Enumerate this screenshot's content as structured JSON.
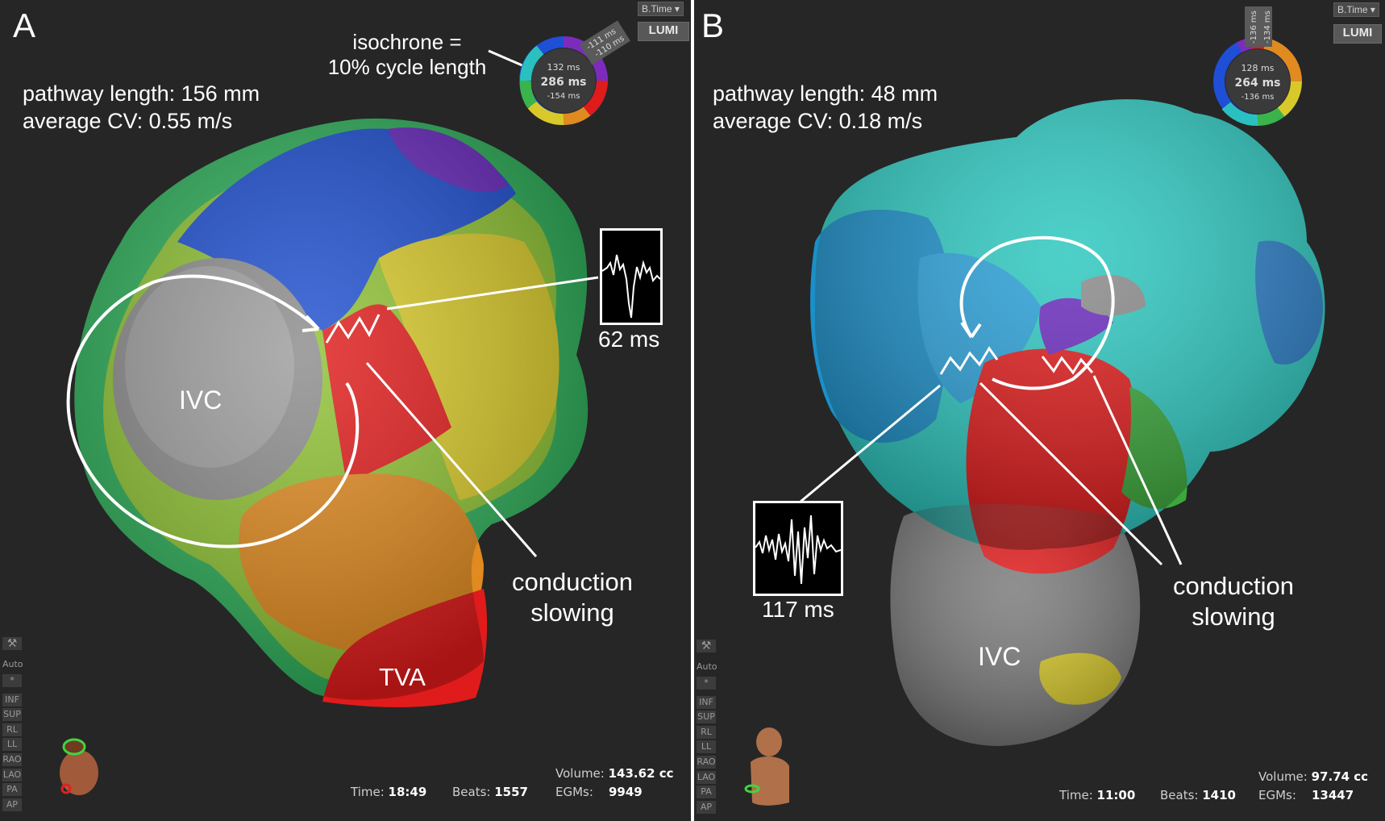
{
  "panel_a": {
    "letter": "A",
    "isochrone_label_1": "isochrone =",
    "isochrone_label_2": "10% cycle length",
    "pathway_length": "pathway length: 156 mm",
    "average_cv": "average CV: 0.55 m/s",
    "ivc_label": "IVC",
    "tva_label": "TVA",
    "conduction_1": "conduction",
    "conduction_2": "slowing",
    "egm_time": "62 ms",
    "btime_button": "B.Time",
    "lumi_button": "LUMI",
    "ring": {
      "top": "132 ms",
      "center": "286 ms",
      "bottom": "-154 ms",
      "tag1": "-111 ms",
      "tag2": "-110 ms"
    },
    "side_buttons": [
      "Auto",
      "*",
      "INF",
      "SUP",
      "RL",
      "LL",
      "RAO",
      "LAO",
      "PA",
      "AP"
    ],
    "footer": {
      "volume_label": "Volume:",
      "volume_value": "143.62 cc",
      "time_label": "Time:",
      "time_value": "18:49",
      "beats_label": "Beats:",
      "beats_value": "1557",
      "egms_label": "EGMs:",
      "egms_value": "9949"
    }
  },
  "panel_b": {
    "letter": "B",
    "pathway_length": "pathway length: 48 mm",
    "average_cv": "average CV: 0.18 m/s",
    "ivc_label": "IVC",
    "conduction_1": "conduction",
    "conduction_2": "slowing",
    "egm_time": "117 ms",
    "btime_button": "B.Time",
    "lumi_button": "LUMI",
    "ring": {
      "top": "128 ms",
      "center": "264 ms",
      "bottom": "-136 ms",
      "tag1": "-136 ms",
      "tag2": "-134 ms"
    },
    "side_buttons": [
      "Auto",
      "*",
      "INF",
      "SUP",
      "RL",
      "LL",
      "RAO",
      "LAO",
      "PA",
      "AP"
    ],
    "footer": {
      "volume_label": "Volume:",
      "volume_value": "97.74 cc",
      "time_label": "Time:",
      "time_value": "11:00",
      "beats_label": "Beats:",
      "beats_value": "1410",
      "egms_label": "EGMs:",
      "egms_value": "13447"
    }
  }
}
